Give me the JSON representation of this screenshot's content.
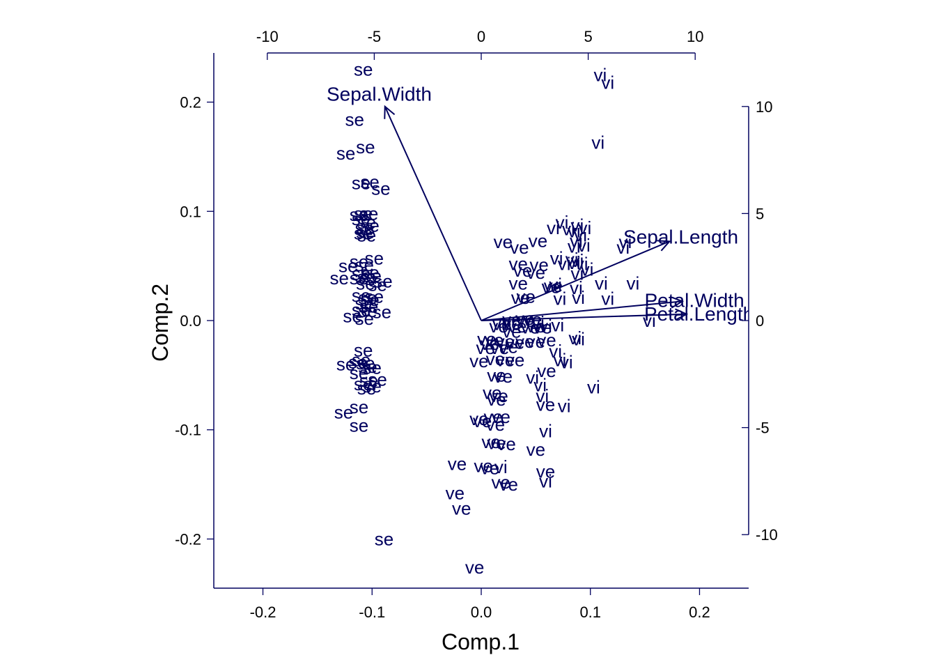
{
  "chart_data": {
    "type": "scatter",
    "subtype": "biplot",
    "xlabel": "Comp.1",
    "ylabel": "Comp.2",
    "xlim": [
      -0.245,
      0.245
    ],
    "ylim": [
      -0.245,
      0.245
    ],
    "x_ticks": [
      "-0.2",
      "-0.1",
      "0.0",
      "0.1",
      "0.2"
    ],
    "y_ticks": [
      "-0.2",
      "-0.1",
      "0.0",
      "0.1",
      "0.2"
    ],
    "loading_axis_range": [
      -12.5,
      12.5
    ],
    "top_ticks": [
      "-10",
      "-5",
      "0",
      "5",
      "10"
    ],
    "right_ticks": [
      "-10",
      "-5",
      "0",
      "5",
      "10"
    ],
    "grid": false,
    "color": "#00005e",
    "series": [
      {
        "name": "se",
        "points": [
          [
            -0.108,
            0.23
          ],
          [
            -0.116,
            0.184
          ],
          [
            -0.124,
            0.153
          ],
          [
            -0.106,
            0.159
          ],
          [
            -0.11,
            0.126
          ],
          [
            -0.102,
            0.127
          ],
          [
            -0.092,
            0.121
          ],
          [
            -0.112,
            0.097
          ],
          [
            -0.108,
            0.098
          ],
          [
            -0.103,
            0.098
          ],
          [
            -0.11,
            0.093
          ],
          [
            -0.105,
            0.09
          ],
          [
            -0.107,
            0.085
          ],
          [
            -0.102,
            0.087
          ],
          [
            -0.106,
            0.081
          ],
          [
            -0.108,
            0.08
          ],
          [
            -0.105,
            0.078
          ],
          [
            -0.112,
            0.054
          ],
          [
            -0.098,
            0.057
          ],
          [
            -0.122,
            0.05
          ],
          [
            -0.107,
            0.051
          ],
          [
            -0.102,
            0.044
          ],
          [
            -0.11,
            0.043
          ],
          [
            -0.105,
            0.04
          ],
          [
            -0.112,
            0.039
          ],
          [
            -0.13,
            0.039
          ],
          [
            -0.1,
            0.041
          ],
          [
            -0.09,
            0.036
          ],
          [
            -0.095,
            0.033
          ],
          [
            -0.106,
            0.034
          ],
          [
            -0.098,
            0.022
          ],
          [
            -0.104,
            0.021
          ],
          [
            -0.11,
            0.023
          ],
          [
            -0.102,
            0.019
          ],
          [
            -0.107,
            0.016
          ],
          [
            -0.103,
            0.013
          ],
          [
            -0.11,
            0.01
          ],
          [
            -0.091,
            0.008
          ],
          [
            -0.104,
            0.009
          ],
          [
            -0.118,
            0.004
          ],
          [
            -0.107,
            0.002
          ],
          [
            -0.108,
            -0.027
          ],
          [
            -0.11,
            -0.036
          ],
          [
            -0.113,
            -0.038
          ],
          [
            -0.106,
            -0.039
          ],
          [
            -0.124,
            -0.04
          ],
          [
            -0.104,
            -0.042
          ],
          [
            -0.1,
            -0.043
          ],
          [
            -0.112,
            -0.048
          ],
          [
            -0.095,
            -0.054
          ],
          [
            -0.103,
            -0.055
          ],
          [
            -0.108,
            -0.058
          ],
          [
            -0.1,
            -0.06
          ],
          [
            -0.105,
            -0.062
          ],
          [
            -0.112,
            -0.079
          ],
          [
            -0.126,
            -0.084
          ],
          [
            -0.112,
            -0.096
          ],
          [
            -0.089,
            -0.2
          ]
        ]
      },
      {
        "name": "ve",
        "points": [
          [
            0.02,
            0.072
          ],
          [
            0.035,
            0.067
          ],
          [
            0.052,
            0.073
          ],
          [
            0.034,
            0.052
          ],
          [
            0.053,
            0.051
          ],
          [
            0.038,
            0.046
          ],
          [
            0.05,
            0.044
          ],
          [
            0.034,
            0.034
          ],
          [
            0.066,
            0.032
          ],
          [
            0.041,
            0.022
          ],
          [
            0.064,
            0.031
          ],
          [
            0.036,
            0.021
          ],
          [
            0.04,
            0.002
          ],
          [
            0.047,
            0.001
          ],
          [
            0.028,
            0.001
          ],
          [
            0.041,
            0.0
          ],
          [
            0.019,
            -0.003
          ],
          [
            0.028,
            -0.003
          ],
          [
            0.05,
            -0.005
          ],
          [
            0.033,
            -0.005
          ],
          [
            0.045,
            -0.006
          ],
          [
            0.056,
            -0.006
          ],
          [
            0.016,
            -0.005
          ],
          [
            0.028,
            -0.01
          ],
          [
            0.005,
            -0.017
          ],
          [
            0.012,
            -0.018
          ],
          [
            0.022,
            -0.019
          ],
          [
            0.031,
            -0.02
          ],
          [
            0.04,
            -0.019
          ],
          [
            0.05,
            -0.019
          ],
          [
            0.06,
            -0.018
          ],
          [
            0.008,
            -0.021
          ],
          [
            0.017,
            -0.025
          ],
          [
            0.004,
            -0.025
          ],
          [
            0.025,
            -0.024
          ],
          [
            -0.002,
            -0.037
          ],
          [
            0.013,
            -0.035
          ],
          [
            0.022,
            -0.036
          ],
          [
            0.031,
            -0.036
          ],
          [
            0.014,
            -0.05
          ],
          [
            0.02,
            -0.051
          ],
          [
            0.06,
            -0.046
          ],
          [
            0.01,
            -0.066
          ],
          [
            0.016,
            -0.069
          ],
          [
            0.014,
            -0.072
          ],
          [
            0.059,
            -0.077
          ],
          [
            0.011,
            -0.088
          ],
          [
            0.018,
            -0.088
          ],
          [
            -0.002,
            -0.09
          ],
          [
            0.001,
            -0.092
          ],
          [
            0.013,
            -0.095
          ],
          [
            0.009,
            -0.111
          ],
          [
            0.014,
            -0.112
          ],
          [
            0.05,
            -0.118
          ],
          [
            0.023,
            -0.113
          ],
          [
            -0.022,
            -0.131
          ],
          [
            0.002,
            -0.133
          ],
          [
            0.008,
            -0.135
          ],
          [
            0.059,
            -0.138
          ],
          [
            0.018,
            -0.148
          ],
          [
            0.025,
            -0.15
          ],
          [
            -0.024,
            -0.158
          ],
          [
            -0.018,
            -0.172
          ],
          [
            -0.006,
            -0.226
          ]
        ]
      },
      {
        "name": "vi",
        "points": [
          [
            0.109,
            0.225
          ],
          [
            0.116,
            0.218
          ],
          [
            0.107,
            0.163
          ],
          [
            0.074,
            0.09
          ],
          [
            0.088,
            0.087
          ],
          [
            0.095,
            0.085
          ],
          [
            0.066,
            0.085
          ],
          [
            0.08,
            0.084
          ],
          [
            0.085,
            0.082
          ],
          [
            0.091,
            0.078
          ],
          [
            0.132,
            0.072
          ],
          [
            0.087,
            0.073
          ],
          [
            0.094,
            0.069
          ],
          [
            0.13,
            0.067
          ],
          [
            0.085,
            0.068
          ],
          [
            0.069,
            0.057
          ],
          [
            0.083,
            0.056
          ],
          [
            0.088,
            0.055
          ],
          [
            0.076,
            0.052
          ],
          [
            0.085,
            0.053
          ],
          [
            0.092,
            0.052
          ],
          [
            0.097,
            0.047
          ],
          [
            0.088,
            0.043
          ],
          [
            0.11,
            0.034
          ],
          [
            0.139,
            0.034
          ],
          [
            0.068,
            0.033
          ],
          [
            0.087,
            0.03
          ],
          [
            0.072,
            0.02
          ],
          [
            0.089,
            0.021
          ],
          [
            0.116,
            0.02
          ],
          [
            0.154,
            0.0
          ],
          [
            0.052,
            -0.002
          ],
          [
            0.07,
            -0.004
          ],
          [
            0.059,
            -0.005
          ],
          [
            0.086,
            -0.016
          ],
          [
            0.089,
            -0.017
          ],
          [
            0.068,
            -0.028
          ],
          [
            0.072,
            -0.036
          ],
          [
            0.078,
            -0.038
          ],
          [
            0.047,
            -0.052
          ],
          [
            0.054,
            -0.059
          ],
          [
            0.103,
            -0.061
          ],
          [
            0.056,
            -0.069
          ],
          [
            0.076,
            -0.078
          ],
          [
            0.059,
            -0.101
          ],
          [
            0.018,
            -0.134
          ],
          [
            0.059,
            -0.147
          ]
        ]
      }
    ],
    "loadings": [
      {
        "name": "Sepal.Width",
        "x": -4.5,
        "y": 10.0
      },
      {
        "name": "Sepal.Length",
        "x": 8.8,
        "y": 3.7
      },
      {
        "name": "Petal.Width",
        "x": 9.4,
        "y": 0.9
      },
      {
        "name": "Petal.Length",
        "x": 9.6,
        "y": 0.3
      }
    ]
  }
}
